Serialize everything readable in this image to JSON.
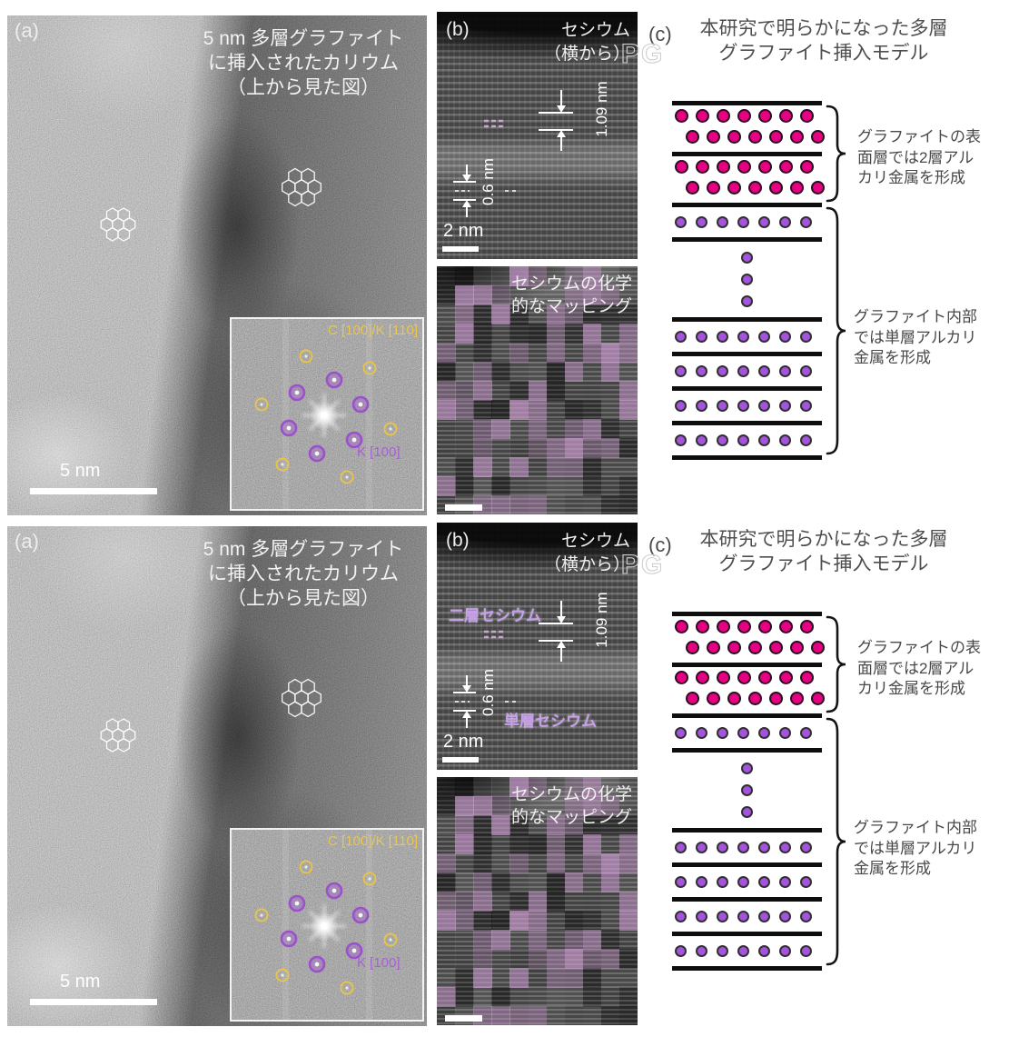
{
  "shared": {
    "watermark": "PG",
    "panel_a": {
      "label": "(a)",
      "title": [
        "5 nm 多層グラファイト",
        "に挿入されたカリウム",
        "（上から見た図）"
      ],
      "scale_bar": "5 nm",
      "fft": {
        "c_label": "C [100]/K [110]",
        "k_label": "K [100]"
      }
    },
    "panel_b": {
      "label": "(b)",
      "title": [
        "セシウム",
        "（横から）"
      ],
      "measure_top": "1.09 nm",
      "measure_bottom": "0.6 nm",
      "scale_bar": "2 nm",
      "mapping_title": [
        "セシウムの化学",
        "的なマッピング"
      ]
    },
    "panel_c": {
      "label": "(c)",
      "header": [
        "本研究で明らかになった多層",
        "グラファイト挿入モデル"
      ],
      "surface_label": [
        "グラファイトの表",
        "面層では2層アル",
        "カリ金属を形成"
      ],
      "inner_label": [
        "グラファイト内部",
        "では単層アルカリ",
        "金属を形成"
      ]
    }
  },
  "figures": {
    "f1": {
      "panel_b": {}
    },
    "f2": {
      "panel_b": {
        "bilayer_label": "二層セシウム",
        "monolayer_label": "単層セシウム"
      }
    }
  },
  "colors": {
    "surface_metal_pink": "#e60082",
    "inner_metal_purple": "#a453dd",
    "graphene_black": "#0e0e0e",
    "fft_ring_yellow": "#e8c44a",
    "fft_ring_purple": "#9b50cc",
    "mapping_pink": "#cf9fd4",
    "annotation_white": "#ffffff",
    "cs_label_purple": "#c7a0ea"
  },
  "model_diagram": {
    "rows": "L,P2,L,P2,L,S,L,E,L,S,L,S,L,S,L,S,L",
    "dots_per_row": 7,
    "ellipsis_dots": 3
  }
}
